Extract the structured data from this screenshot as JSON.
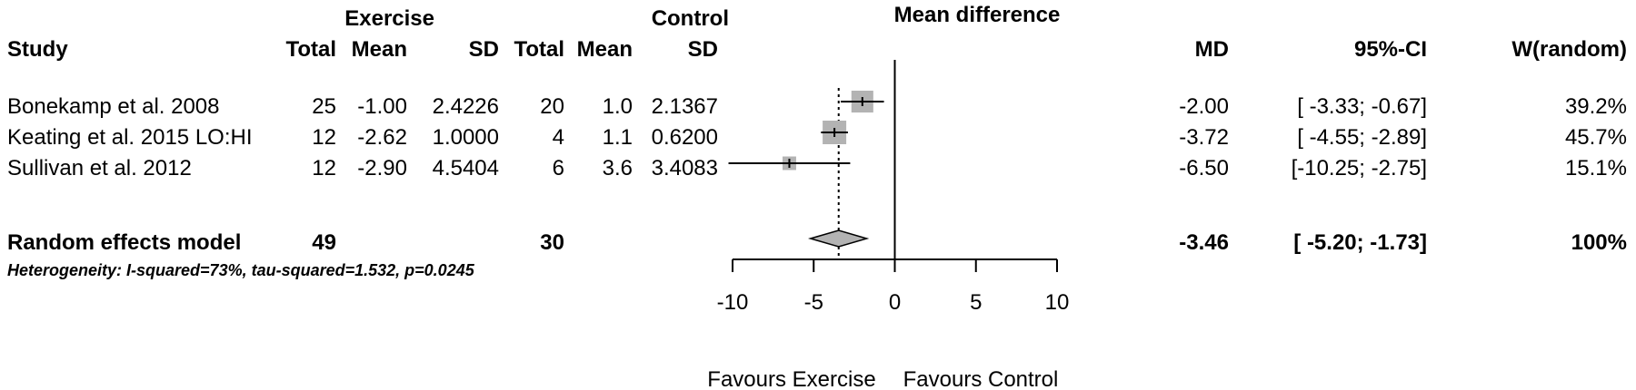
{
  "header": {
    "group_exercise": "Exercise",
    "group_control": "Control",
    "plot_title": "Mean difference",
    "col_study": "Study",
    "col_total": "Total",
    "col_mean": "Mean",
    "col_sd": "SD",
    "col_md": "MD",
    "col_ci": "95%-CI",
    "col_weight": "W(random)"
  },
  "studies": [
    {
      "name": "Bonekamp et al. 2008",
      "ex_total": "25",
      "ex_mean": "-1.00",
      "ex_sd": "2.4226",
      "ctl_total": "20",
      "ctl_mean": "1.0",
      "ctl_sd": "2.1367",
      "md_text": "-2.00",
      "ci_text": "[ -3.33; -0.67]",
      "weight_text": "39.2%",
      "md": -2.0,
      "lower": -3.33,
      "upper": -0.67,
      "weight": 39.2
    },
    {
      "name": "Keating et al. 2015 LO:HI",
      "ex_total": "12",
      "ex_mean": "-2.62",
      "ex_sd": "1.0000",
      "ctl_total": "4",
      "ctl_mean": "1.1",
      "ctl_sd": "0.6200",
      "md_text": "-3.72",
      "ci_text": "[ -4.55; -2.89]",
      "weight_text": "45.7%",
      "md": -3.72,
      "lower": -4.55,
      "upper": -2.89,
      "weight": 45.7
    },
    {
      "name": "Sullivan et al. 2012",
      "ex_total": "12",
      "ex_mean": "-2.90",
      "ex_sd": "4.5404",
      "ctl_total": "6",
      "ctl_mean": "3.6",
      "ctl_sd": "3.4083",
      "md_text": "-6.50",
      "ci_text": "[-10.25; -2.75]",
      "weight_text": "15.1%",
      "md": -6.5,
      "lower": -10.25,
      "upper": -2.75,
      "weight": 15.1
    }
  ],
  "summary": {
    "label": "Random effects model",
    "ex_total": "49",
    "ctl_total": "30",
    "md_text": "-3.46",
    "ci_text": "[ -5.20; -1.73]",
    "weight_text": "100%",
    "md": -3.46,
    "lower": -5.2,
    "upper": -1.73,
    "heterogeneity": "Heterogeneity: I-squared=73%, tau-squared=1.532, p=0.0245"
  },
  "chart_data": {
    "type": "forest",
    "title": "Mean difference",
    "xlim": [
      -10,
      10
    ],
    "ticks": [
      -10,
      -5,
      0,
      5,
      10
    ],
    "tick_labels": [
      "-10",
      "-5",
      "0",
      "5",
      "10"
    ],
    "no_effect_line": 0,
    "summary_line": -3.46,
    "favours_left": "Favours Exercise",
    "favours_right": "Favours Control",
    "square_color": "#b3b3b3",
    "diamond_color": "#b3b3b3"
  }
}
